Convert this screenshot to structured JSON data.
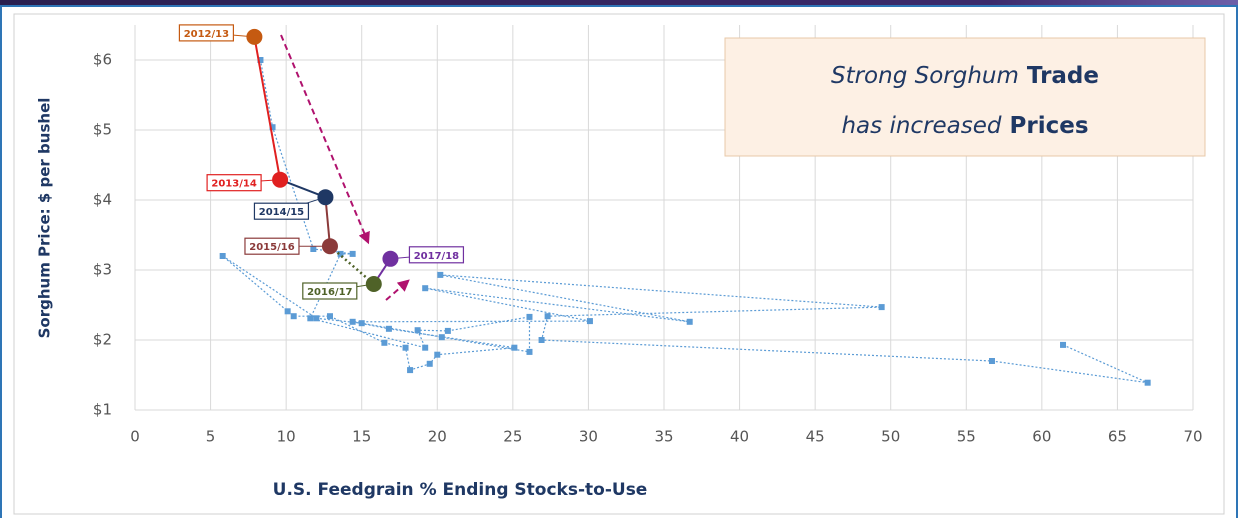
{
  "chart_data": {
    "type": "scatter",
    "xlabel": "U.S. Feedgrain % Ending Stocks-to-Use",
    "ylabel": "Sorghum Price: $ per bushel",
    "xlim": [
      0,
      70
    ],
    "ylim": [
      1,
      6.5
    ],
    "xticks": [
      0,
      5,
      10,
      15,
      20,
      25,
      30,
      35,
      40,
      45,
      50,
      55,
      60,
      65,
      70
    ],
    "yticks": [
      {
        "value": 1,
        "label": "$1"
      },
      {
        "value": 2,
        "label": "$2"
      },
      {
        "value": 3,
        "label": "$3"
      },
      {
        "value": 4,
        "label": "$4"
      },
      {
        "value": 5,
        "label": "$5"
      },
      {
        "value": 6,
        "label": "$6"
      }
    ],
    "grid": true,
    "series": [
      {
        "color": "#5b9bd5",
        "x": [
          61.4,
          67.0,
          56.7,
          26.9,
          27.3,
          49.4,
          20.2,
          36.7,
          19.2,
          30.1,
          14.4,
          16.8,
          25.1,
          20.0,
          19.5,
          18.2,
          17.9,
          16.5,
          12.9,
          10.5,
          10.1,
          5.8,
          12.0,
          15.0,
          20.3,
          26.1,
          26.1,
          20.7,
          18.7,
          19.2,
          11.6,
          13.6,
          14.4,
          11.8,
          9.1,
          8.3
        ],
        "y": [
          1.93,
          1.39,
          1.7,
          2.0,
          2.34,
          2.47,
          2.93,
          2.26,
          2.74,
          2.27,
          2.26,
          2.16,
          1.89,
          1.79,
          1.66,
          1.57,
          1.89,
          1.96,
          2.34,
          2.34,
          2.41,
          3.2,
          2.31,
          2.24,
          2.04,
          1.83,
          2.33,
          2.13,
          2.14,
          1.89,
          2.31,
          3.23,
          3.23,
          3.3,
          5.04,
          6.0
        ]
      }
    ],
    "highlights": [
      {
        "label": "2012/13",
        "color": "#c55a11",
        "x": 7.9,
        "y": 6.33
      },
      {
        "label": "2013/14",
        "color": "#e02020",
        "x": 9.6,
        "y": 4.29
      },
      {
        "label": "2014/15",
        "color": "#1f3864",
        "x": 12.6,
        "y": 4.04
      },
      {
        "label": "2015/16",
        "color": "#8b3a3a",
        "x": 12.9,
        "y": 3.34
      },
      {
        "label": "2016/17",
        "color": "#4f6228",
        "x": 15.8,
        "y": 2.8
      },
      {
        "label": "2017/18",
        "color": "#7030a0",
        "x": 16.9,
        "y": 3.16
      }
    ],
    "annotation": [
      [
        "Strong Sorghum",
        "Trade"
      ],
      [
        "has increased",
        "Prices"
      ]
    ]
  }
}
